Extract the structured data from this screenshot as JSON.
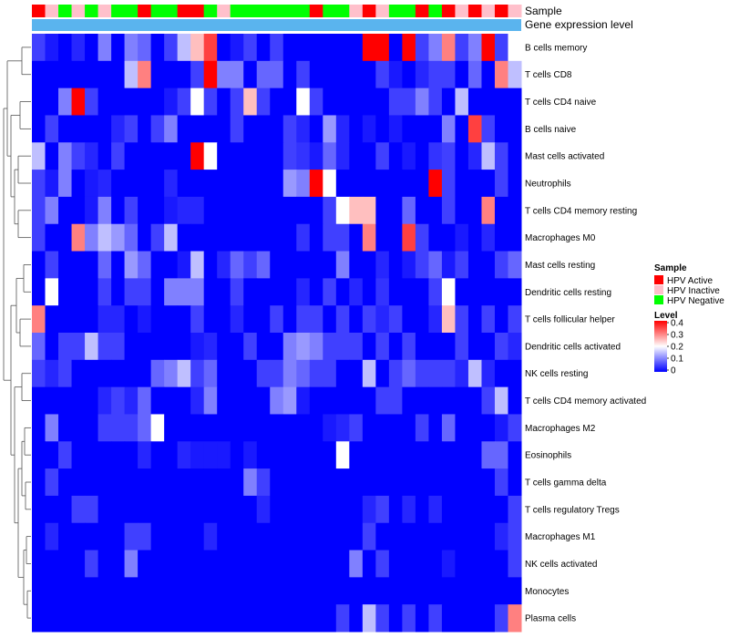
{
  "chart_data": {
    "type": "heatmap",
    "annotation_titles": [
      "Sample",
      "Gene expression level"
    ],
    "rows": [
      "B cells memory",
      "T cells CD8",
      "T cells CD4 naive",
      "B cells naive",
      "Mast cells activated",
      "Neutrophils",
      "T cells CD4 memory resting",
      "Macrophages M0",
      "Mast cells resting",
      "Dendritic cells resting",
      "T cells follicular helper",
      "Dendritic cells activated",
      "NK cells resting",
      "T cells CD4 memory activated",
      "Macrophages M2",
      "Eosinophils",
      "T cells gamma delta",
      "T cells regulatory  Tregs",
      "Macrophages M1",
      "NK cells activated",
      "Monocytes",
      "Plasma cells"
    ],
    "sample_groups": [
      "A",
      "I",
      "G",
      "I",
      "G",
      "I",
      "G",
      "G",
      "A",
      "G",
      "G",
      "A",
      "A",
      "G",
      "I",
      "G",
      "G",
      "G",
      "G",
      "G",
      "G",
      "A",
      "G",
      "G",
      "I",
      "A",
      "I",
      "G",
      "G",
      "A",
      "G",
      "A",
      "I",
      "A",
      "I",
      "A",
      "I"
    ],
    "values": [
      [
        0.05,
        0.02,
        0,
        0.03,
        0,
        0.1,
        0,
        0.1,
        0.08,
        0,
        0.05,
        0.15,
        0.25,
        0.35,
        0,
        0.02,
        0.05,
        0,
        0.05,
        0,
        0,
        0,
        0,
        0,
        0,
        0.4,
        0.4,
        0,
        0.4,
        0.05,
        0.1,
        0.3,
        0.05,
        0.1,
        0.4,
        0.05,
        0.2
      ],
      [
        0,
        0,
        0,
        0,
        0,
        0,
        0,
        0.15,
        0.3,
        0,
        0,
        0,
        0.05,
        0.4,
        0.1,
        0.1,
        0,
        0.08,
        0.08,
        0,
        0.05,
        0,
        0,
        0,
        0,
        0,
        0.05,
        0.02,
        0,
        0.03,
        0.05,
        0.05,
        0,
        0.08,
        0,
        0.3,
        0.15
      ],
      [
        0,
        0,
        0.1,
        0.4,
        0.05,
        0,
        0,
        0,
        0,
        0,
        0.02,
        0.05,
        0.2,
        0.05,
        0,
        0.05,
        0.25,
        0.05,
        0,
        0,
        0.2,
        0.05,
        0,
        0,
        0,
        0,
        0,
        0.05,
        0.05,
        0.1,
        0.05,
        0,
        0.15,
        0,
        0,
        0,
        0
      ],
      [
        0,
        0.05,
        0,
        0,
        0,
        0,
        0.03,
        0.05,
        0,
        0.05,
        0.1,
        0,
        0,
        0,
        0,
        0.05,
        0,
        0,
        0,
        0.05,
        0.03,
        0,
        0.12,
        0.03,
        0,
        0.02,
        0,
        0.02,
        0,
        0,
        0,
        0.1,
        0,
        0.35,
        0.05,
        0,
        0
      ],
      [
        0.15,
        0,
        0.1,
        0.05,
        0.03,
        0,
        0.05,
        0,
        0,
        0,
        0,
        0,
        0.4,
        0.2,
        0,
        0,
        0,
        0,
        0,
        0.05,
        0.04,
        0.02,
        0.08,
        0.03,
        0,
        0,
        0.05,
        0,
        0.02,
        0,
        0.04,
        0.05,
        0,
        0.03,
        0.15,
        0.05,
        0
      ],
      [
        0.05,
        0.02,
        0.1,
        0,
        0.02,
        0.03,
        0,
        0,
        0,
        0,
        0.03,
        0,
        0,
        0,
        0,
        0,
        0,
        0,
        0,
        0.12,
        0.1,
        0.4,
        0.2,
        0,
        0,
        0,
        0,
        0,
        0,
        0,
        0.4,
        0.05,
        0,
        0,
        0,
        0.05,
        0
      ],
      [
        0.05,
        0.1,
        0,
        0,
        0.02,
        0.1,
        0,
        0.05,
        0,
        0,
        0.02,
        0.03,
        0.03,
        0,
        0,
        0,
        0,
        0,
        0,
        0,
        0,
        0,
        0.05,
        0.2,
        0.25,
        0.25,
        0,
        0,
        0.08,
        0,
        0,
        0.05,
        0,
        0,
        0.3,
        0,
        0
      ],
      [
        0.05,
        0,
        0,
        0.3,
        0.1,
        0.15,
        0.12,
        0.08,
        0,
        0.05,
        0.15,
        0,
        0,
        0,
        0,
        0,
        0,
        0,
        0,
        0,
        0.04,
        0,
        0.05,
        0.05,
        0,
        0.3,
        0,
        0,
        0.35,
        0.05,
        0,
        0,
        0.02,
        0,
        0.03,
        0,
        0
      ],
      [
        0,
        0.05,
        0,
        0,
        0,
        0.08,
        0,
        0.12,
        0.08,
        0,
        0,
        0.02,
        0.15,
        0,
        0.03,
        0.08,
        0.05,
        0.08,
        0,
        0,
        0,
        0,
        0,
        0.1,
        0,
        0,
        0.03,
        0,
        0.02,
        0.05,
        0.08,
        0.02,
        0.05,
        0,
        0,
        0.05,
        0.08
      ],
      [
        0,
        0.2,
        0,
        0,
        0,
        0.05,
        0,
        0.05,
        0.05,
        0,
        0.1,
        0.1,
        0.1,
        0,
        0,
        0.05,
        0,
        0,
        0,
        0,
        0.03,
        0,
        0.05,
        0,
        0.03,
        0,
        0.04,
        0,
        0,
        0,
        0.05,
        0.2,
        0,
        0,
        0,
        0,
        0
      ],
      [
        0.3,
        0,
        0,
        0,
        0,
        0.03,
        0.03,
        0,
        0.02,
        0,
        0,
        0,
        0.05,
        0,
        0,
        0.03,
        0,
        0,
        0.05,
        0,
        0.05,
        0.05,
        0,
        0.05,
        0,
        0.05,
        0.03,
        0.05,
        0,
        0,
        0.03,
        0.25,
        0.05,
        0,
        0.05,
        0,
        0.05
      ],
      [
        0.08,
        0,
        0.05,
        0.05,
        0.15,
        0.05,
        0.05,
        0,
        0,
        0,
        0,
        0,
        0.02,
        0.03,
        0,
        0,
        0.05,
        0,
        0,
        0.1,
        0.12,
        0.1,
        0.05,
        0.05,
        0.05,
        0,
        0.05,
        0,
        0.05,
        0,
        0,
        0,
        0.05,
        0,
        0,
        0.05,
        0.03
      ],
      [
        0.05,
        0.03,
        0.05,
        0,
        0,
        0,
        0,
        0,
        0,
        0.08,
        0.1,
        0.15,
        0.05,
        0.08,
        0,
        0,
        0,
        0.05,
        0.05,
        0.1,
        0.08,
        0.05,
        0.05,
        0,
        0,
        0.15,
        0,
        0.05,
        0.08,
        0.05,
        0.05,
        0.05,
        0.03,
        0.15,
        0.03,
        0,
        0
      ],
      [
        0,
        0,
        0,
        0,
        0,
        0.03,
        0.05,
        0.03,
        0.08,
        0,
        0,
        0,
        0.03,
        0.1,
        0,
        0,
        0,
        0,
        0.1,
        0.12,
        0.02,
        0,
        0,
        0,
        0,
        0,
        0.05,
        0.05,
        0,
        0,
        0,
        0,
        0,
        0,
        0.05,
        0.15,
        0
      ],
      [
        0,
        0.1,
        0,
        0,
        0,
        0.05,
        0.05,
        0.05,
        0.08,
        0.2,
        0,
        0,
        0,
        0,
        0,
        0,
        0,
        0,
        0,
        0,
        0,
        0,
        0.02,
        0.03,
        0.05,
        0,
        0,
        0,
        0,
        0.05,
        0,
        0.08,
        0,
        0,
        0,
        0.02,
        0.05
      ],
      [
        0,
        0,
        0.05,
        0,
        0,
        0,
        0,
        0,
        0.03,
        0,
        0,
        0.03,
        0.02,
        0.02,
        0.02,
        0,
        0.02,
        0,
        0,
        0,
        0,
        0,
        0,
        0.2,
        0,
        0,
        0,
        0,
        0,
        0,
        0,
        0,
        0,
        0,
        0.08,
        0.08,
        0
      ],
      [
        0,
        0.05,
        0,
        0,
        0,
        0,
        0,
        0,
        0,
        0,
        0,
        0,
        0,
        0,
        0,
        0,
        0.1,
        0.05,
        0,
        0,
        0,
        0,
        0,
        0,
        0,
        0,
        0,
        0,
        0,
        0,
        0,
        0,
        0,
        0,
        0,
        0.05,
        0
      ],
      [
        0,
        0,
        0,
        0.05,
        0.05,
        0,
        0,
        0,
        0,
        0,
        0,
        0,
        0,
        0,
        0,
        0,
        0,
        0.03,
        0,
        0,
        0,
        0,
        0,
        0,
        0,
        0.03,
        0.05,
        0,
        0.03,
        0,
        0.03,
        0,
        0,
        0,
        0,
        0,
        0.05
      ],
      [
        0,
        0.03,
        0,
        0,
        0,
        0,
        0,
        0.05,
        0.05,
        0,
        0,
        0,
        0,
        0.03,
        0,
        0,
        0,
        0,
        0,
        0,
        0,
        0,
        0,
        0,
        0,
        0.05,
        0,
        0,
        0,
        0,
        0,
        0,
        0,
        0,
        0,
        0.03,
        0.05
      ],
      [
        0,
        0,
        0,
        0,
        0.05,
        0,
        0,
        0.1,
        0,
        0,
        0,
        0,
        0,
        0,
        0,
        0,
        0,
        0,
        0,
        0,
        0,
        0,
        0,
        0,
        0.1,
        0,
        0.05,
        0,
        0,
        0,
        0,
        0.02,
        0,
        0,
        0,
        0,
        0.05
      ],
      [
        0,
        0,
        0,
        0,
        0,
        0,
        0,
        0,
        0,
        0,
        0,
        0,
        0,
        0,
        0,
        0,
        0,
        0,
        0,
        0,
        0,
        0,
        0,
        0,
        0,
        0,
        0,
        0,
        0,
        0,
        0,
        0,
        0,
        0,
        0,
        0,
        0
      ],
      [
        0,
        0,
        0,
        0,
        0,
        0,
        0,
        0,
        0,
        0,
        0,
        0,
        0,
        0,
        0,
        0,
        0,
        0,
        0,
        0,
        0,
        0,
        0,
        0.05,
        0,
        0.15,
        0.05,
        0,
        0.05,
        0,
        0.05,
        0,
        0,
        0,
        0,
        0.05,
        0.3
      ]
    ],
    "legend": {
      "sample_title": "Sample",
      "sample_entries": [
        {
          "key": "A",
          "label": "HPV Active",
          "color": "#ff0000"
        },
        {
          "key": "I",
          "label": "HPV Inactive",
          "color": "#ffc0cb"
        },
        {
          "key": "G",
          "label": "HPV Negative",
          "color": "#00ff00"
        }
      ],
      "level_title": "Level",
      "level_ticks": [
        "0.4",
        "0.3",
        "0.2",
        "0.1",
        "0"
      ],
      "range": [
        0,
        0.4
      ]
    },
    "expression_bar_color": "#5ab4ee",
    "colors": {
      "low": "#0000ff",
      "mid": "#ffffff",
      "high": "#ff0000"
    }
  }
}
